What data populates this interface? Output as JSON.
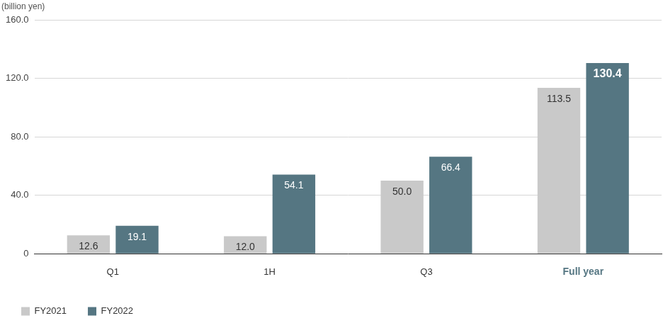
{
  "chart_data": {
    "type": "bar",
    "y_label": "(billion yen)",
    "categories": [
      "Q1",
      "1H",
      "Q3",
      "Full year"
    ],
    "series": [
      {
        "name": "FY2021",
        "color": "#c9c9c9",
        "values": [
          12.6,
          12.0,
          50.0,
          113.5
        ],
        "value_labels": [
          "12.6",
          "12.0",
          "50.0",
          "113.5"
        ]
      },
      {
        "name": "FY2022",
        "color": "#557682",
        "values": [
          19.1,
          54.1,
          66.4,
          130.4
        ],
        "value_labels": [
          "19.1",
          "54.1",
          "66.4",
          "130.4"
        ]
      }
    ],
    "ylim": [
      0,
      160
    ],
    "yticks": [
      0,
      {
        "value": 40,
        "label": "40.0"
      },
      {
        "value": 80,
        "label": "80.0"
      },
      {
        "value": 120,
        "label": "120.0"
      },
      {
        "value": 160,
        "label": "160.0"
      }
    ],
    "grid": true,
    "legend": "bottom-left",
    "data_labels": true
  }
}
